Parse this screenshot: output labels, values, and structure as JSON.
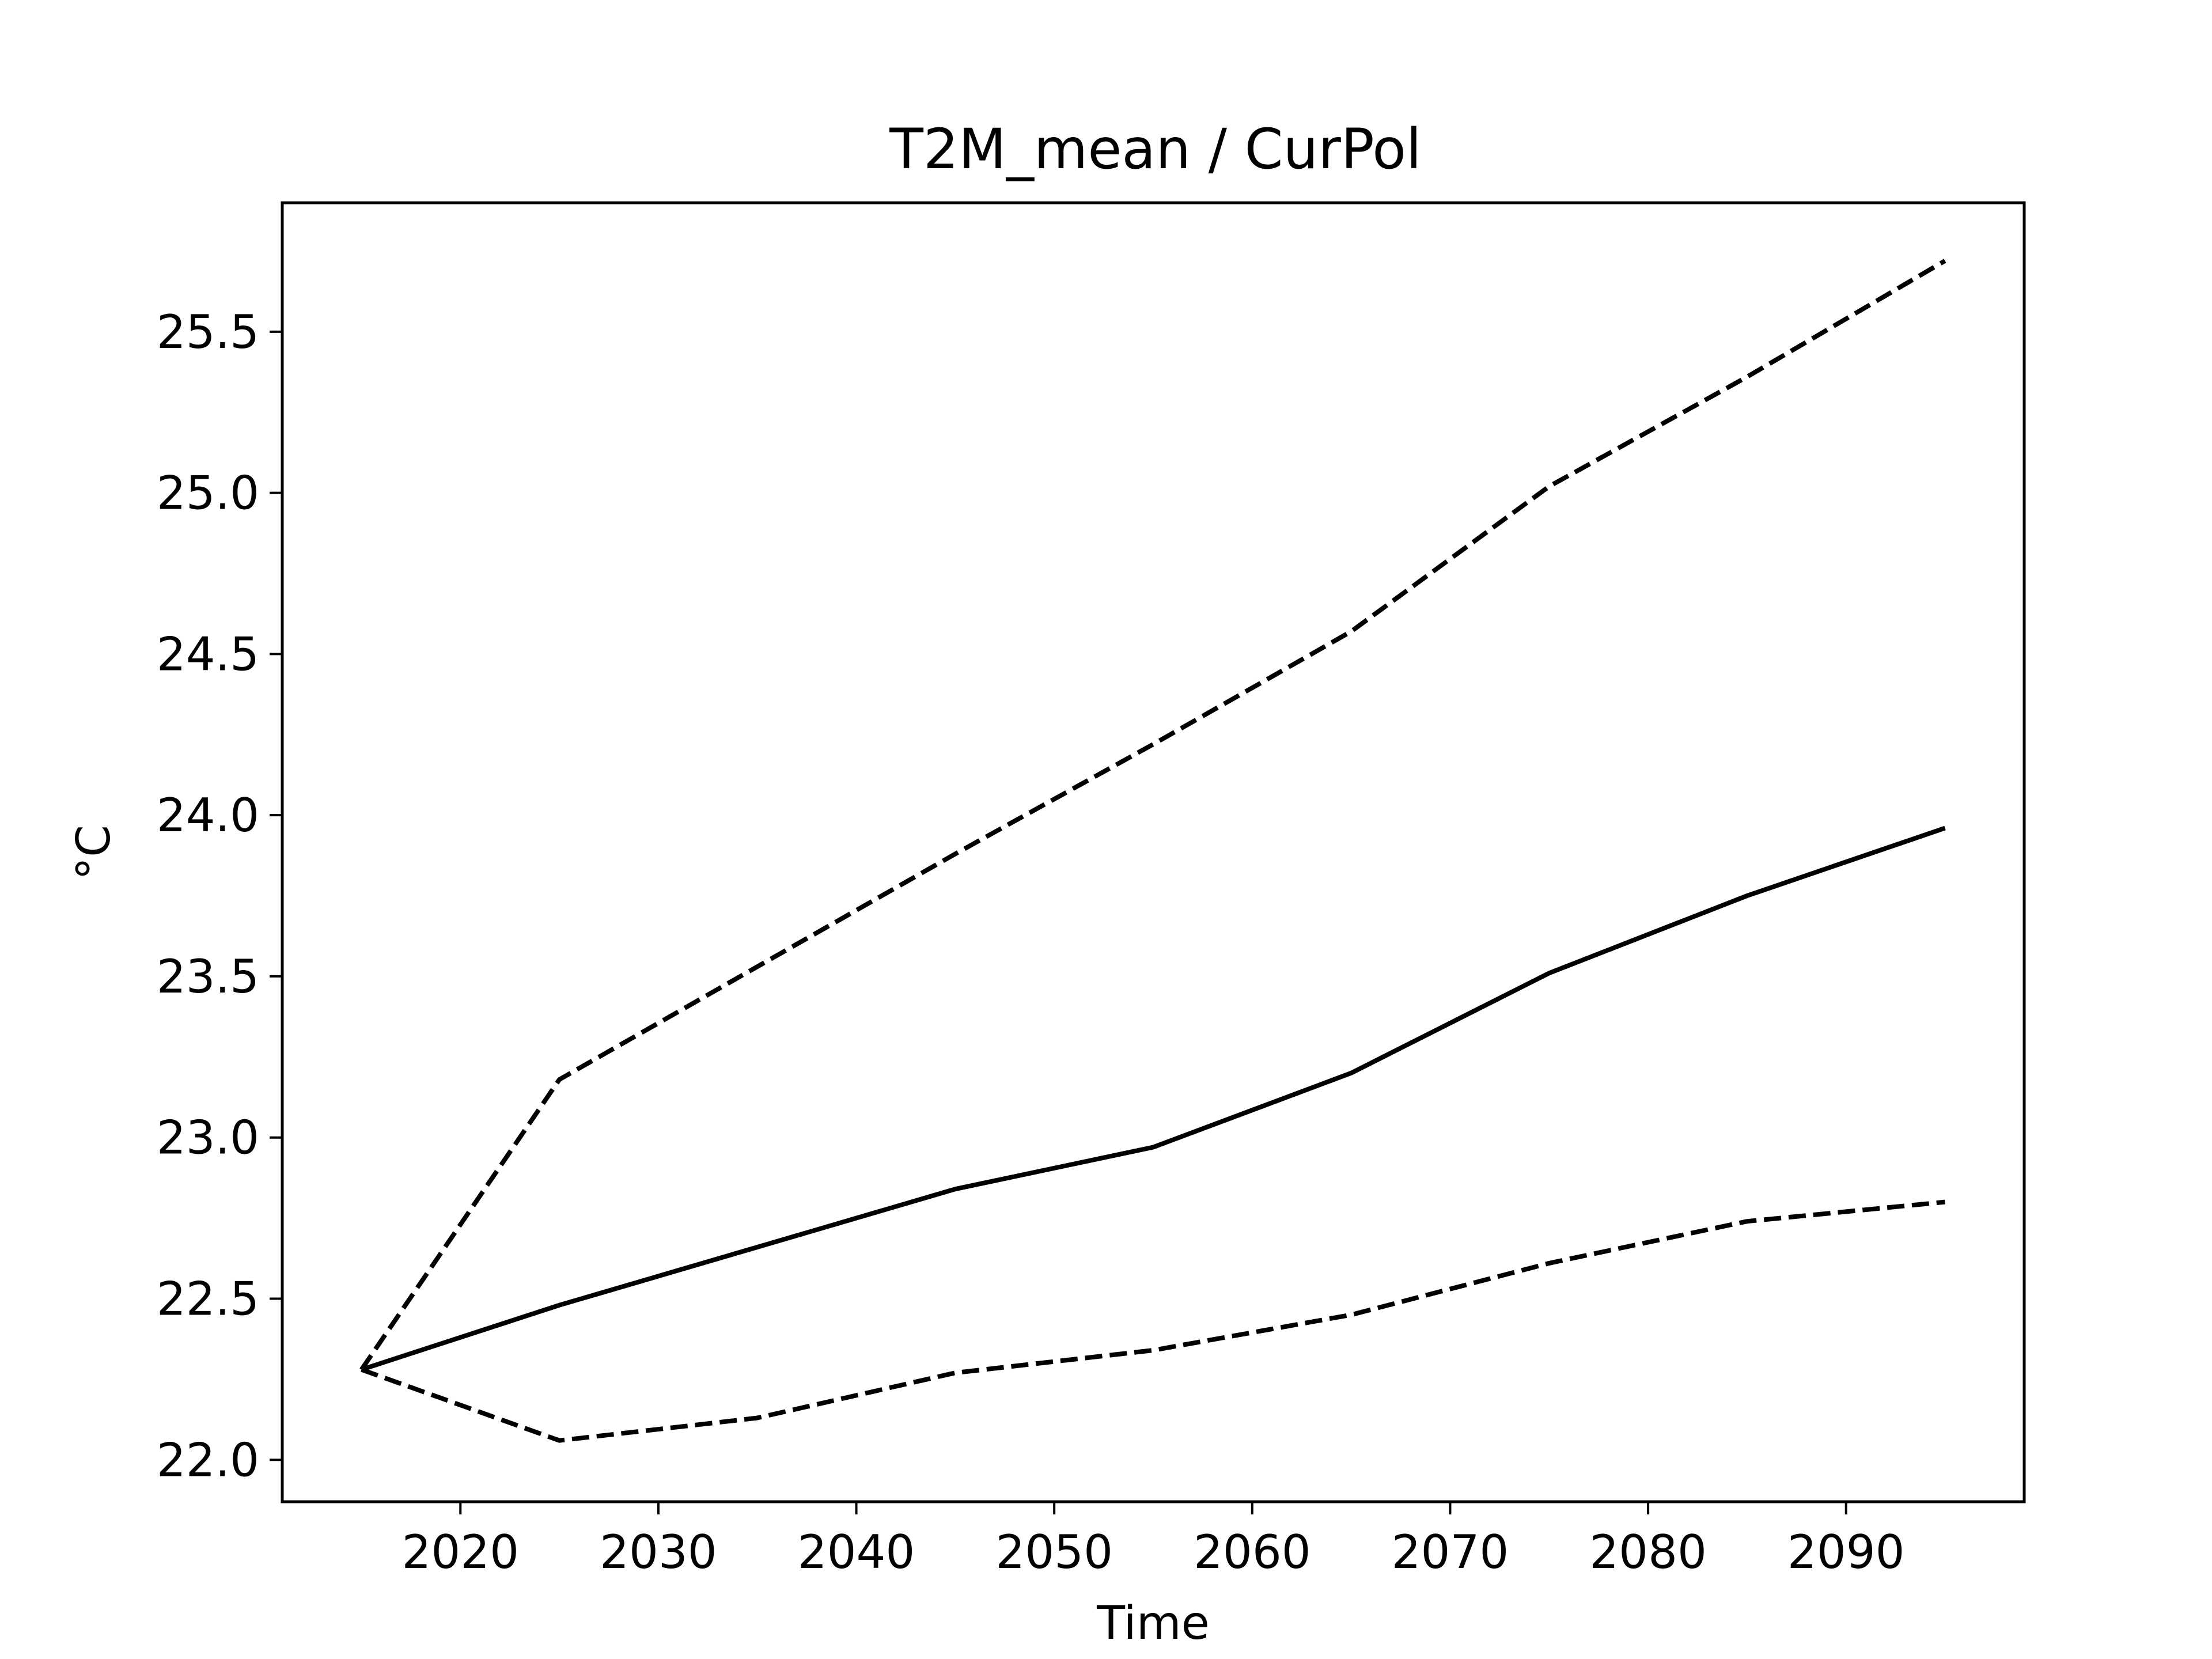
{
  "chart_data": {
    "type": "line",
    "title": "T2M_mean / CurPol",
    "xlabel": "Time",
    "ylabel": "°C",
    "xlim": [
      2011,
      2099
    ],
    "ylim": [
      21.87,
      25.9
    ],
    "xticks": [
      2020,
      2030,
      2040,
      2050,
      2060,
      2070,
      2080,
      2090
    ],
    "xtick_labels": [
      "2020",
      "2030",
      "2040",
      "2050",
      "2060",
      "2070",
      "2080",
      "2090"
    ],
    "yticks": [
      22.0,
      22.5,
      23.0,
      23.5,
      24.0,
      24.5,
      25.0,
      25.5
    ],
    "ytick_labels": [
      "22.0",
      "22.5",
      "23.0",
      "23.5",
      "24.0",
      "24.5",
      "25.0",
      "25.5"
    ],
    "grid": false,
    "x": [
      2015,
      2025,
      2035,
      2045,
      2055,
      2065,
      2075,
      2085,
      2095
    ],
    "series": [
      {
        "style": "dashed",
        "color": "#000000",
        "values": [
          22.28,
          23.18,
          23.53,
          23.88,
          24.22,
          24.57,
          25.02,
          25.36,
          25.72
        ]
      },
      {
        "style": "solid",
        "color": "#000000",
        "values": [
          22.28,
          22.48,
          22.66,
          22.84,
          22.97,
          23.2,
          23.51,
          23.75,
          23.96
        ]
      },
      {
        "style": "dashed",
        "color": "#000000",
        "values": [
          22.28,
          22.06,
          22.13,
          22.27,
          22.34,
          22.45,
          22.61,
          22.74,
          22.8
        ]
      }
    ]
  }
}
